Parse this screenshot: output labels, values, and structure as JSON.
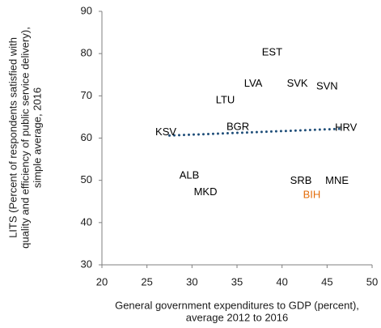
{
  "chart_data": {
    "type": "scatter",
    "x_label": [
      "General government expenditures to GDP (percent),",
      "average 2012 to 2016"
    ],
    "y_label": [
      "LITS (Percent of respondents satisfied with",
      "quality and efficiency of public service delivery),",
      "simple average, 2016"
    ],
    "xlim": [
      20,
      50
    ],
    "xticks": [
      20,
      25,
      30,
      35,
      40,
      45,
      50
    ],
    "ylim": [
      30,
      90
    ],
    "yticks": [
      30,
      40,
      50,
      60,
      70,
      80,
      90
    ],
    "grid": false,
    "points": [
      {
        "label": "EST",
        "x": 38.9,
        "y": 80.2,
        "color": "#000000"
      },
      {
        "label": "LVA",
        "x": 36.8,
        "y": 72.8,
        "color": "#000000"
      },
      {
        "label": "SVK",
        "x": 41.7,
        "y": 72.8,
        "color": "#000000"
      },
      {
        "label": "SVN",
        "x": 45.0,
        "y": 72.2,
        "color": "#000000"
      },
      {
        "label": "LTU",
        "x": 33.7,
        "y": 68.9,
        "color": "#000000"
      },
      {
        "label": "BGR",
        "x": 35.1,
        "y": 62.6,
        "color": "#000000"
      },
      {
        "label": "KSV",
        "x": 27.1,
        "y": 61.3,
        "color": "#000000"
      },
      {
        "label": "HRV",
        "x": 47.1,
        "y": 62.4,
        "color": "#000000"
      },
      {
        "label": "ALB",
        "x": 29.7,
        "y": 51.1,
        "color": "#000000"
      },
      {
        "label": "MKD",
        "x": 31.5,
        "y": 47.1,
        "color": "#000000"
      },
      {
        "label": "SRB",
        "x": 42.1,
        "y": 49.8,
        "color": "#000000"
      },
      {
        "label": "MNE",
        "x": 46.1,
        "y": 49.8,
        "color": "#000000"
      },
      {
        "label": "BIH",
        "x": 43.3,
        "y": 46.5,
        "color": "#e36c0a"
      }
    ],
    "trendline": {
      "x": [
        27.5,
        46.5
      ],
      "values": [
        60.6,
        62.2
      ],
      "color": "#1f4e79"
    }
  }
}
